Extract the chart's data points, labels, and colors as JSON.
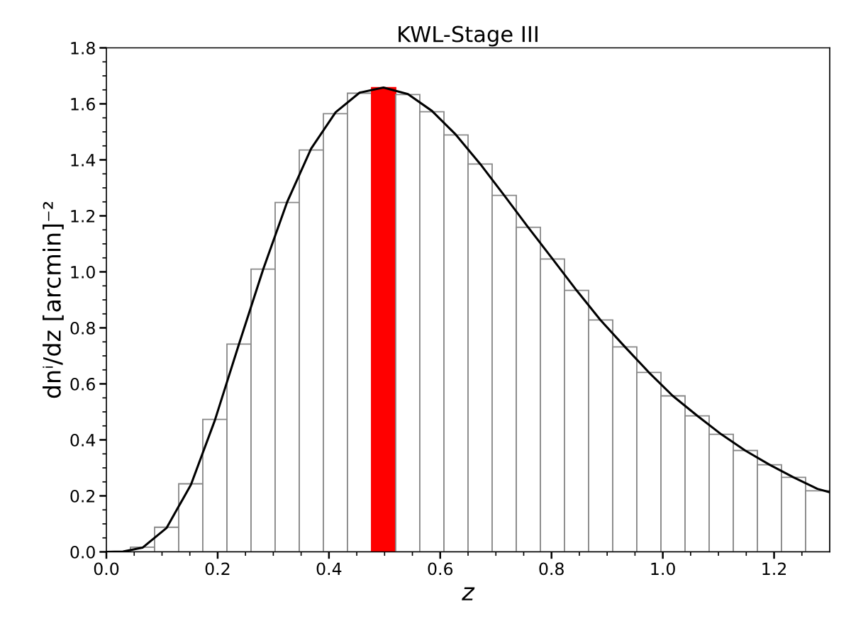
{
  "chart_data": {
    "type": "histogram",
    "title": "KWL-Stage III",
    "xlabel": "z",
    "ylabel": "dnⁱ/dz [arcmin]⁻²",
    "series": [
      {
        "bins": [
          0.0,
          0.0433,
          0.0867,
          0.13,
          0.1733,
          0.2167,
          0.26,
          0.3033,
          0.3467,
          0.39,
          0.4333,
          0.4767,
          0.52,
          0.5633,
          0.6067,
          0.65,
          0.6933,
          0.7367,
          0.78,
          0.8233,
          0.8667,
          0.91,
          0.9533,
          0.9967,
          1.04,
          1.0833,
          1.1267,
          1.17,
          1.2133,
          1.2567,
          1.3
        ],
        "values": [
          null,
          0.017,
          0.088,
          0.243,
          0.473,
          0.742,
          1.01,
          1.248,
          1.435,
          1.565,
          1.638,
          1.658,
          1.633,
          1.572,
          1.489,
          1.385,
          1.273,
          1.159,
          1.046,
          0.934,
          0.828,
          0.732,
          0.641,
          0.557,
          0.486,
          0.42,
          0.362,
          0.311,
          0.266,
          0.218
        ],
        "colors": [
          "#ffffff",
          "#ffffff",
          "#ffffff",
          "#ffffff",
          "#ffffff",
          "#ffffff",
          "#ffffff",
          "#ffffff",
          "#ffffff",
          "#ffffff",
          "#ffffff",
          "#ff0000",
          "#ffffff",
          "#ffffff",
          "#ffffff",
          "#ffffff",
          "#ffffff",
          "#ffffff",
          "#ffffff",
          "#ffffff",
          "#ffffff",
          "#ffffff",
          "#ffffff",
          "#ffffff",
          "#ffffff",
          "#ffffff",
          "#ffffff",
          "#ffffff",
          "#ffffff",
          "#ffffff"
        ]
      },
      {
        "type": "line",
        "color": "#000000",
        "x": [
          0.0,
          0.03,
          0.065,
          0.108,
          0.152,
          0.195,
          0.238,
          0.282,
          0.325,
          0.368,
          0.412,
          0.455,
          0.498,
          0.542,
          0.585,
          0.628,
          0.672,
          0.715,
          0.758,
          0.802,
          0.845,
          0.888,
          0.932,
          0.975,
          1.018,
          1.062,
          1.105,
          1.148,
          1.192,
          1.235,
          1.278,
          1.3
        ],
        "values": [
          0.0,
          0.001,
          0.015,
          0.085,
          0.24,
          0.47,
          0.74,
          1.01,
          1.25,
          1.44,
          1.57,
          1.64,
          1.658,
          1.635,
          1.575,
          1.49,
          1.385,
          1.273,
          1.159,
          1.046,
          0.934,
          0.828,
          0.732,
          0.641,
          0.557,
          0.486,
          0.42,
          0.362,
          0.311,
          0.266,
          0.225,
          0.213
        ]
      }
    ],
    "xlim": [
      0,
      1.3
    ],
    "ylim": [
      0,
      1.8
    ],
    "xticks": [
      {
        "value": 0,
        "label": "0.0"
      },
      {
        "value": 0.05,
        "label": null
      },
      {
        "value": 0.1,
        "label": null
      },
      {
        "value": 0.15,
        "label": null
      },
      {
        "value": 0.2,
        "label": "0.2"
      },
      {
        "value": 0.25,
        "label": null
      },
      {
        "value": 0.3,
        "label": null
      },
      {
        "value": 0.35,
        "label": null
      },
      {
        "value": 0.4,
        "label": "0.4"
      },
      {
        "value": 0.45,
        "label": null
      },
      {
        "value": 0.5,
        "label": null
      },
      {
        "value": 0.55,
        "label": null
      },
      {
        "value": 0.6,
        "label": "0.6"
      },
      {
        "value": 0.65,
        "label": null
      },
      {
        "value": 0.7,
        "label": null
      },
      {
        "value": 0.75,
        "label": null
      },
      {
        "value": 0.8,
        "label": "0.8"
      },
      {
        "value": 0.85,
        "label": null
      },
      {
        "value": 0.9,
        "label": null
      },
      {
        "value": 0.95,
        "label": null
      },
      {
        "value": 1.0,
        "label": "1.0"
      },
      {
        "value": 1.05,
        "label": null
      },
      {
        "value": 1.1,
        "label": null
      },
      {
        "value": 1.15,
        "label": null
      },
      {
        "value": 1.2,
        "label": "1.2"
      },
      {
        "value": 1.25,
        "label": null
      }
    ],
    "yticks": [
      {
        "value": 0,
        "label": "0.0"
      },
      {
        "value": 0.05,
        "label": null
      },
      {
        "value": 0.1,
        "label": null
      },
      {
        "value": 0.15,
        "label": null
      },
      {
        "value": 0.2,
        "label": "0.2"
      },
      {
        "value": 0.25,
        "label": null
      },
      {
        "value": 0.3,
        "label": null
      },
      {
        "value": 0.35,
        "label": null
      },
      {
        "value": 0.4,
        "label": "0.4"
      },
      {
        "value": 0.45,
        "label": null
      },
      {
        "value": 0.5,
        "label": null
      },
      {
        "value": 0.55,
        "label": null
      },
      {
        "value": 0.6,
        "label": "0.6"
      },
      {
        "value": 0.65,
        "label": null
      },
      {
        "value": 0.7,
        "label": null
      },
      {
        "value": 0.75,
        "label": null
      },
      {
        "value": 0.8,
        "label": "0.8"
      },
      {
        "value": 0.85,
        "label": null
      },
      {
        "value": 0.9,
        "label": null
      },
      {
        "value": 0.95,
        "label": null
      },
      {
        "value": 1.0,
        "label": "1.0"
      },
      {
        "value": 1.05,
        "label": null
      },
      {
        "value": 1.1,
        "label": null
      },
      {
        "value": 1.15,
        "label": null
      },
      {
        "value": 1.2,
        "label": "1.2"
      },
      {
        "value": 1.25,
        "label": null
      },
      {
        "value": 1.3,
        "label": null
      },
      {
        "value": 1.35,
        "label": null
      },
      {
        "value": 1.4,
        "label": "1.4"
      },
      {
        "value": 1.45,
        "label": null
      },
      {
        "value": 1.5,
        "label": null
      },
      {
        "value": 1.55,
        "label": null
      },
      {
        "value": 1.6,
        "label": "1.6"
      },
      {
        "value": 1.65,
        "label": null
      },
      {
        "value": 1.7,
        "label": null
      },
      {
        "value": 1.75,
        "label": null
      },
      {
        "value": 1.8,
        "label": "1.8"
      }
    ],
    "grid": false
  }
}
